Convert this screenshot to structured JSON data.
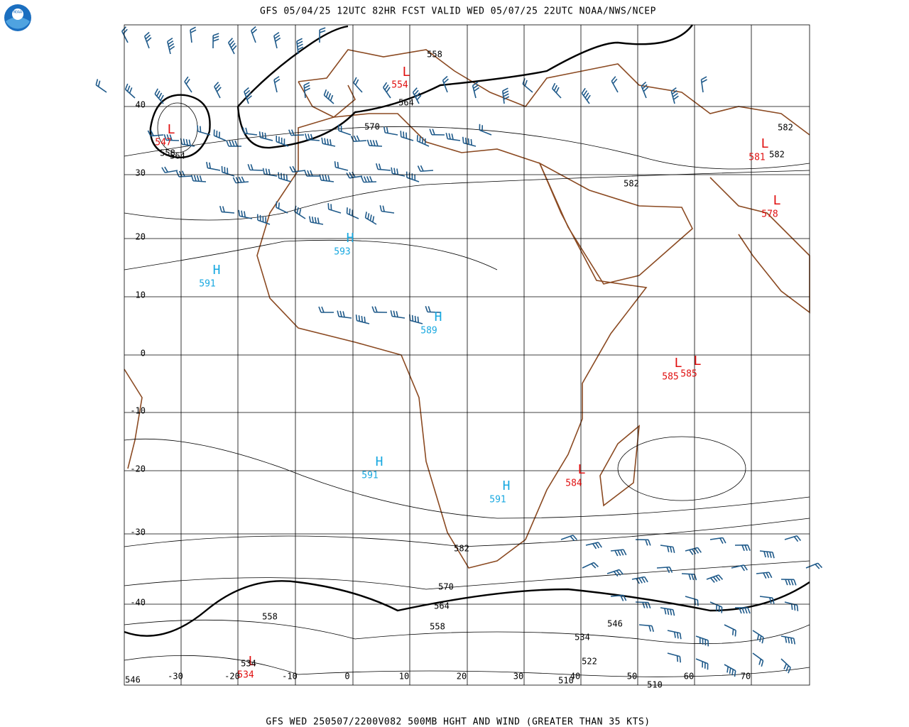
{
  "header": {
    "title": "GFS 05/04/25 12UTC 82HR FCST VALID WED 05/07/25 22UTC NOAA/NWS/NCEP",
    "logo": "NOAA"
  },
  "footer": {
    "title": "GFS WED 250507/2200V082 500MB HGHT AND WIND (GREATER THAN 35 KTS)"
  },
  "lat_labels": [
    "40",
    "30",
    "20",
    "10",
    "0",
    "-10",
    "-20",
    "-30",
    "-40"
  ],
  "lon_labels": [
    "-30",
    "-20",
    "-10",
    "0",
    "10",
    "20",
    "30",
    "40",
    "50",
    "60",
    "70"
  ],
  "centers": [
    {
      "symbol": "L",
      "value": "547"
    },
    {
      "symbol": "L",
      "value": "554"
    },
    {
      "symbol": "L",
      "value": "581"
    },
    {
      "symbol": "L",
      "value": "578"
    },
    {
      "symbol": "L",
      "value": "585"
    },
    {
      "symbol": "L",
      "value": "585"
    },
    {
      "symbol": "L",
      "value": "584"
    },
    {
      "symbol": "L",
      "value": "534"
    },
    {
      "symbol": "H",
      "value": "593"
    },
    {
      "symbol": "H",
      "value": "591"
    },
    {
      "symbol": "H",
      "value": "589"
    },
    {
      "symbol": "H",
      "value": "591"
    },
    {
      "symbol": "H",
      "value": "591"
    }
  ],
  "contour_labels": [
    "558",
    "564",
    "570",
    "558",
    "564",
    "582",
    "582",
    "582",
    "582",
    "570",
    "564",
    "558",
    "546",
    "534",
    "522",
    "510",
    "510",
    "546",
    "558",
    "534"
  ]
}
